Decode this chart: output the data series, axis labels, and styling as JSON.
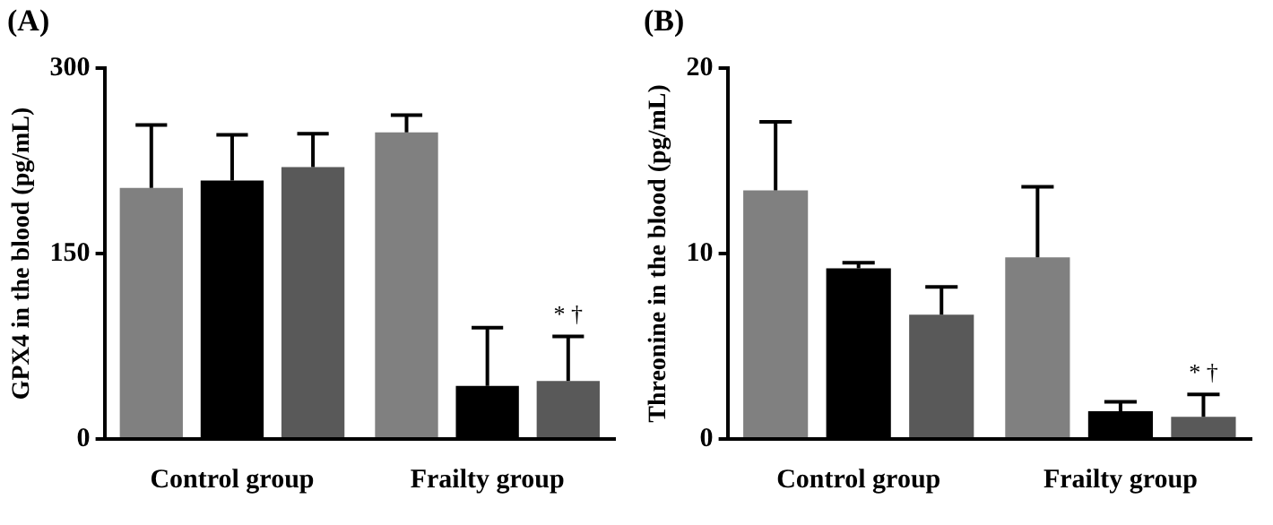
{
  "chart_data": [
    {
      "type": "bar",
      "title": "(A)",
      "ylabel": "GPX4 in the blood (pg/mL)",
      "categories": [
        "Control group",
        "Frailty group"
      ],
      "series": [
        {
          "color": "#808080",
          "values": [
            203,
            248
          ],
          "errors": [
            [
              203,
              254
            ],
            [
              248,
              262
            ]
          ]
        },
        {
          "color": "#000000",
          "values": [
            209,
            43
          ],
          "errors": [
            [
              209,
              246
            ],
            [
              43,
              90
            ]
          ]
        },
        {
          "color": "#595959",
          "values": [
            220,
            47
          ],
          "errors": [
            [
              220,
              247
            ],
            [
              47,
              83
            ]
          ]
        }
      ],
      "ylim": [
        0,
        300
      ],
      "yticks": [
        0,
        150,
        300
      ],
      "grid": false,
      "legend": false,
      "annotations": [
        "* †"
      ]
    },
    {
      "type": "bar",
      "title": "(B)",
      "ylabel": "Threonine in the blood (pg/mL)",
      "categories": [
        "Control group",
        "Frailty group"
      ],
      "series": [
        {
          "color": "#808080",
          "values": [
            13.4,
            9.8
          ],
          "errors": [
            [
              13.4,
              17.1
            ],
            [
              9.8,
              13.6
            ]
          ]
        },
        {
          "color": "#000000",
          "values": [
            9.2,
            1.5
          ],
          "errors": [
            [
              9.2,
              9.5
            ],
            [
              1.5,
              2
            ]
          ]
        },
        {
          "color": "#595959",
          "values": [
            6.7,
            1.2
          ],
          "errors": [
            [
              6.7,
              8.2
            ],
            [
              1.2,
              2.4
            ]
          ]
        }
      ],
      "ylim": [
        0,
        20
      ],
      "yticks": [
        0,
        10,
        20
      ],
      "grid": false,
      "legend": false,
      "annotations": [
        "* †"
      ]
    }
  ]
}
